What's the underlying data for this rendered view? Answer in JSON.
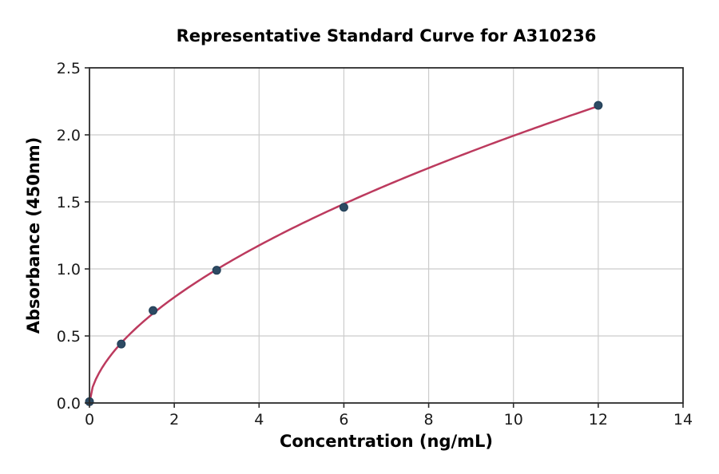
{
  "chart_data": {
    "type": "scatter",
    "title": "Representative Standard Curve for A310236",
    "xlabel": "Concentration (ng/mL)",
    "ylabel": "Absorbance (450nm)",
    "xlim": [
      0,
      14
    ],
    "ylim": [
      0,
      2.5
    ],
    "x_ticks": [
      0,
      2,
      4,
      6,
      8,
      10,
      12,
      14
    ],
    "x_tick_labels": [
      "0",
      "2",
      "4",
      "6",
      "8",
      "10",
      "12",
      "14"
    ],
    "y_ticks": [
      0.0,
      0.5,
      1.0,
      1.5,
      2.0,
      2.5
    ],
    "y_tick_labels": [
      "0.0",
      "0.5",
      "1.0",
      "1.5",
      "2.0",
      "2.5"
    ],
    "grid": true,
    "legend": false,
    "points": {
      "x": [
        0,
        0.75,
        1.5,
        3,
        6,
        12
      ],
      "y": [
        0.01,
        0.44,
        0.69,
        0.99,
        1.46,
        2.22
      ]
    },
    "fit_curve": {
      "model": "power",
      "a": 0.5285,
      "b": 0.5765,
      "x_range": [
        0,
        12
      ]
    },
    "colors": {
      "curve": "#bc3a5e",
      "marker": "#2d4a63",
      "marker_edge": "#1f3d55",
      "grid": "#cccccc",
      "spine": "#2b2b2b",
      "text": "#1a1a1a"
    }
  }
}
